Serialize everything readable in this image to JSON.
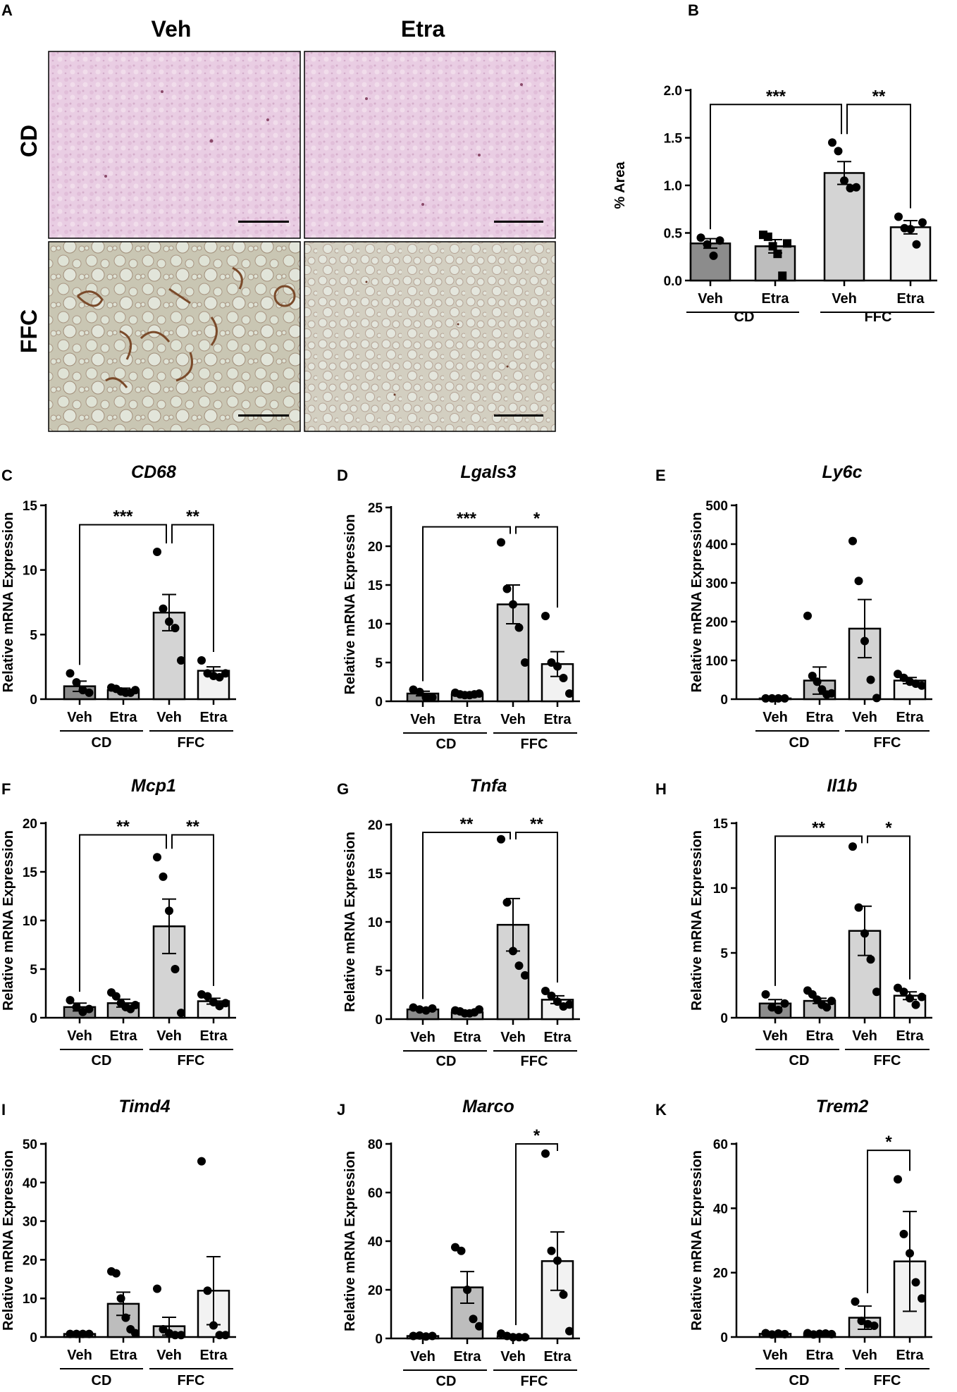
{
  "panel_a": {
    "label": "A",
    "columns": [
      "Veh",
      "Etra"
    ],
    "rows": [
      "CD",
      "FFC"
    ]
  },
  "colors": {
    "veh_cd": "#8c8c8c",
    "etra_cd": "#bdbdbd",
    "veh_ffc": "#d4d4d4",
    "etra_ffc": "#f2f2f2"
  },
  "chart_data": [
    {
      "id": "B",
      "type": "bar",
      "title": "",
      "ylabel": "% Area",
      "ylim": [
        0,
        2.0
      ],
      "yticks": [
        "0.0",
        "0.5",
        "1.0",
        "1.5",
        "2.0"
      ],
      "ytick_values": [
        0,
        0.5,
        1.0,
        1.5,
        2.0
      ],
      "categories": [
        "Veh",
        "Etra",
        "Veh",
        "Etra"
      ],
      "groups": [
        "CD",
        "FFC"
      ],
      "values": [
        0.39,
        0.36,
        1.13,
        0.56
      ],
      "sem": [
        0.05,
        0.07,
        0.12,
        0.07
      ],
      "points": [
        [
          0.45,
          0.38,
          0.26,
          0.42
        ],
        [
          0.48,
          0.46,
          0.36,
          0.28,
          0.05,
          0.39
        ],
        [
          1.45,
          1.36,
          1.05,
          0.97,
          0.98
        ],
        [
          0.67,
          0.55,
          0.54,
          0.38,
          0.61
        ]
      ],
      "markers": [
        "circle",
        "square",
        "circle",
        "circle"
      ],
      "sig": [
        {
          "from": 0,
          "to": 2,
          "label": "***",
          "y": 1.85
        },
        {
          "from": 2,
          "to": 3,
          "label": "**",
          "y": 1.85
        }
      ]
    },
    {
      "id": "C",
      "type": "bar",
      "title": "CD68",
      "ylabel": "Relative mRNA Expression",
      "ylim": [
        0,
        15
      ],
      "yticks": [
        "0",
        "5",
        "10",
        "15"
      ],
      "ytick_values": [
        0,
        5,
        10,
        15
      ],
      "categories": [
        "Veh",
        "Etra",
        "Veh",
        "Etra"
      ],
      "groups": [
        "CD",
        "FFC"
      ],
      "values": [
        1.0,
        0.7,
        6.7,
        2.2
      ],
      "sem": [
        0.4,
        0.15,
        1.4,
        0.3
      ],
      "points": [
        [
          2.0,
          1.3,
          0.7,
          0.5
        ],
        [
          0.9,
          0.8,
          0.6,
          0.5,
          0.5,
          0.7
        ],
        [
          11.4,
          7.0,
          6.0,
          5.5,
          3.0
        ],
        [
          3.0,
          2.0,
          1.8,
          1.7,
          2.0
        ]
      ],
      "markers": [
        "circle",
        "circle",
        "circle",
        "circle"
      ],
      "sig": [
        {
          "from": 0,
          "to": 2,
          "label": "***",
          "y": 13.5
        },
        {
          "from": 2,
          "to": 3,
          "label": "**",
          "y": 13.5
        }
      ]
    },
    {
      "id": "D",
      "type": "bar",
      "title": "Lgals3",
      "ylabel": "Relative mRNA Expression",
      "ylim": [
        0,
        25
      ],
      "yticks": [
        "0",
        "5",
        "10",
        "15",
        "20",
        "25"
      ],
      "ytick_values": [
        0,
        5,
        10,
        15,
        20,
        25
      ],
      "categories": [
        "Veh",
        "Etra",
        "Veh",
        "Etra"
      ],
      "groups": [
        "CD",
        "FFC"
      ],
      "values": [
        1.0,
        0.9,
        12.5,
        4.8
      ],
      "sem": [
        0.3,
        0.1,
        2.5,
        1.6
      ],
      "points": [
        [
          1.5,
          1.2,
          0.5,
          0.5
        ],
        [
          1.1,
          0.9,
          0.8,
          0.8,
          0.9,
          1.0
        ],
        [
          20.5,
          14.5,
          12.5,
          9.5,
          5.0
        ],
        [
          11.0,
          5.0,
          4.5,
          3.0,
          1.0
        ]
      ],
      "markers": [
        "circle",
        "circle",
        "circle",
        "circle"
      ],
      "sig": [
        {
          "from": 0,
          "to": 2,
          "label": "***",
          "y": 22.5
        },
        {
          "from": 2,
          "to": 3,
          "label": "*",
          "y": 22.5
        }
      ]
    },
    {
      "id": "E",
      "type": "bar",
      "title": "Ly6c",
      "ylabel": "Relative mRNA Expression",
      "ylim": [
        0,
        500
      ],
      "yticks": [
        "0",
        "100",
        "200",
        "300",
        "400",
        "500"
      ],
      "ytick_values": [
        0,
        100,
        200,
        300,
        400,
        500
      ],
      "categories": [
        "Veh",
        "Etra",
        "Veh",
        "Etra"
      ],
      "groups": [
        "CD",
        "FFC"
      ],
      "values": [
        2,
        48,
        182,
        48
      ],
      "sem": [
        1,
        35,
        75,
        8
      ],
      "points": [
        [
          2,
          2,
          2,
          2
        ],
        [
          215,
          60,
          45,
          25,
          12,
          15
        ],
        [
          408,
          305,
          150,
          50,
          3
        ],
        [
          65,
          55,
          45,
          40,
          35
        ]
      ],
      "markers": [
        "circle",
        "circle",
        "circle",
        "circle"
      ],
      "sig": []
    },
    {
      "id": "F",
      "type": "bar",
      "title": "Mcp1",
      "ylabel": "Relative mRNA Expression",
      "ylim": [
        0,
        20
      ],
      "yticks": [
        "0",
        "5",
        "10",
        "15",
        "20"
      ],
      "ytick_values": [
        0,
        5,
        10,
        15,
        20
      ],
      "categories": [
        "Veh",
        "Etra",
        "Veh",
        "Etra"
      ],
      "groups": [
        "CD",
        "FFC"
      ],
      "values": [
        1.1,
        1.5,
        9.4,
        1.7
      ],
      "sem": [
        0.4,
        0.4,
        2.8,
        0.3
      ],
      "points": [
        [
          1.8,
          1.1,
          0.6,
          0.9
        ],
        [
          2.6,
          2.2,
          1.5,
          1.1,
          0.9,
          1.3
        ],
        [
          16.5,
          14.5,
          11.0,
          5.0,
          0.5
        ],
        [
          2.4,
          2.2,
          1.6,
          1.2,
          1.5
        ]
      ],
      "markers": [
        "circle",
        "circle",
        "circle",
        "circle"
      ],
      "sig": [
        {
          "from": 0,
          "to": 2,
          "label": "**",
          "y": 18.8
        },
        {
          "from": 2,
          "to": 3,
          "label": "**",
          "y": 18.8
        }
      ]
    },
    {
      "id": "G",
      "type": "bar",
      "title": "Tnfa",
      "ylabel": "Relative mRNA Expression",
      "ylim": [
        0,
        20
      ],
      "yticks": [
        "0",
        "5",
        "10",
        "15",
        "20"
      ],
      "ytick_values": [
        0,
        5,
        10,
        15,
        20
      ],
      "categories": [
        "Veh",
        "Etra",
        "Veh",
        "Etra"
      ],
      "groups": [
        "CD",
        "FFC"
      ],
      "values": [
        1.0,
        0.7,
        9.7,
        2.0
      ],
      "sem": [
        0.1,
        0.1,
        2.7,
        0.4
      ],
      "points": [
        [
          1.2,
          1.0,
          0.9,
          1.1
        ],
        [
          0.9,
          0.8,
          0.6,
          0.6,
          0.7,
          1.0
        ],
        [
          18.5,
          12.0,
          7.0,
          5.5,
          4.5
        ],
        [
          2.9,
          2.4,
          1.8,
          1.3,
          1.5
        ]
      ],
      "markers": [
        "circle",
        "circle",
        "circle",
        "circle"
      ],
      "sig": [
        {
          "from": 0,
          "to": 2,
          "label": "**",
          "y": 19.2
        },
        {
          "from": 2,
          "to": 3,
          "label": "**",
          "y": 19.2
        }
      ]
    },
    {
      "id": "H",
      "type": "bar",
      "title": "Il1b",
      "ylabel": "Relative mRNA Expression",
      "ylim": [
        0,
        15
      ],
      "yticks": [
        "0",
        "5",
        "10",
        "15"
      ],
      "ytick_values": [
        0,
        5,
        10,
        15
      ],
      "categories": [
        "Veh",
        "Etra",
        "Veh",
        "Etra"
      ],
      "groups": [
        "CD",
        "FFC"
      ],
      "values": [
        1.1,
        1.3,
        6.7,
        1.7
      ],
      "sem": [
        0.3,
        0.2,
        1.9,
        0.3
      ],
      "points": [
        [
          1.8,
          0.8,
          0.6,
          1.1
        ],
        [
          2.1,
          1.8,
          1.4,
          1.0,
          0.8,
          1.3
        ],
        [
          13.2,
          8.5,
          6.5,
          4.5,
          2.0
        ],
        [
          2.3,
          2.0,
          1.5,
          1.0,
          1.6
        ]
      ],
      "markers": [
        "circle",
        "circle",
        "circle",
        "circle"
      ],
      "sig": [
        {
          "from": 0,
          "to": 2,
          "label": "**",
          "y": 14.0
        },
        {
          "from": 2,
          "to": 3,
          "label": "*",
          "y": 14.0
        }
      ]
    },
    {
      "id": "I",
      "type": "bar",
      "title": "Timd4",
      "ylabel": "Relative mRNA Expression",
      "ylim": [
        0,
        50
      ],
      "yticks": [
        "0",
        "10",
        "20",
        "30",
        "40",
        "50"
      ],
      "ytick_values": [
        0,
        10,
        20,
        30,
        40,
        50
      ],
      "categories": [
        "Veh",
        "Etra",
        "Veh",
        "Etra"
      ],
      "groups": [
        "CD",
        "FFC"
      ],
      "values": [
        0.8,
        8.6,
        2.8,
        12.0
      ],
      "sem": [
        0.1,
        3.0,
        2.3,
        8.8
      ],
      "points": [
        [
          0.8,
          0.8,
          0.8,
          0.8
        ],
        [
          17.0,
          16.5,
          10.0,
          5.0,
          2.0,
          1.0
        ],
        [
          12.5,
          2.0,
          1.0,
          0.5,
          0.5
        ],
        [
          45.5,
          12.0,
          3.0,
          0.5,
          0.5
        ]
      ],
      "markers": [
        "circle",
        "circle",
        "circle",
        "circle"
      ],
      "sig": []
    },
    {
      "id": "J",
      "type": "bar",
      "title": "Marco",
      "ylabel": "Relative mRNA Expression",
      "ylim": [
        0,
        80
      ],
      "yticks": [
        "0",
        "20",
        "40",
        "60",
        "80"
      ],
      "ytick_values": [
        0,
        20,
        40,
        60,
        80
      ],
      "categories": [
        "Veh",
        "Etra",
        "Veh",
        "Etra"
      ],
      "groups": [
        "CD",
        "FFC"
      ],
      "values": [
        1.0,
        21.0,
        0.9,
        31.8
      ],
      "sem": [
        0.2,
        6.5,
        0.3,
        12.0
      ],
      "points": [
        [
          1.0,
          1.2,
          0.8,
          1.0
        ],
        [
          37.5,
          36.0,
          20.0,
          8.0,
          5.0
        ],
        [
          2.0,
          1.0,
          0.5,
          0.5,
          0.5
        ],
        [
          76.0,
          36.0,
          32.0,
          18.0,
          3.0
        ]
      ],
      "markers": [
        "circle",
        "circle",
        "circle",
        "circle"
      ],
      "sig": [
        {
          "from": 2,
          "to": 3,
          "label": "*",
          "y": 80
        }
      ]
    },
    {
      "id": "K",
      "type": "bar",
      "title": "Trem2",
      "ylabel": "Relative mRNA Expression",
      "ylim": [
        0,
        60
      ],
      "yticks": [
        "0",
        "20",
        "40",
        "60"
      ],
      "ytick_values": [
        0,
        20,
        40,
        60
      ],
      "categories": [
        "Veh",
        "Etra",
        "Veh",
        "Etra"
      ],
      "groups": [
        "CD",
        "FFC"
      ],
      "values": [
        1.0,
        1.0,
        6.0,
        23.5
      ],
      "sem": [
        0.1,
        0.1,
        3.6,
        15.5
      ],
      "points": [
        [
          1.2,
          0.8,
          1.1,
          0.9
        ],
        [
          1.2,
          0.8,
          1.0,
          1.1,
          0.9
        ],
        [
          11.0,
          5.0,
          4.0,
          3.5
        ],
        [
          49.0,
          32.0,
          26.0,
          17.0,
          12.0
        ]
      ],
      "markers": [
        "circle",
        "circle",
        "circle",
        "circle"
      ],
      "sig": [
        {
          "from": 2,
          "to": 3,
          "label": "*",
          "y": 58
        }
      ]
    }
  ]
}
